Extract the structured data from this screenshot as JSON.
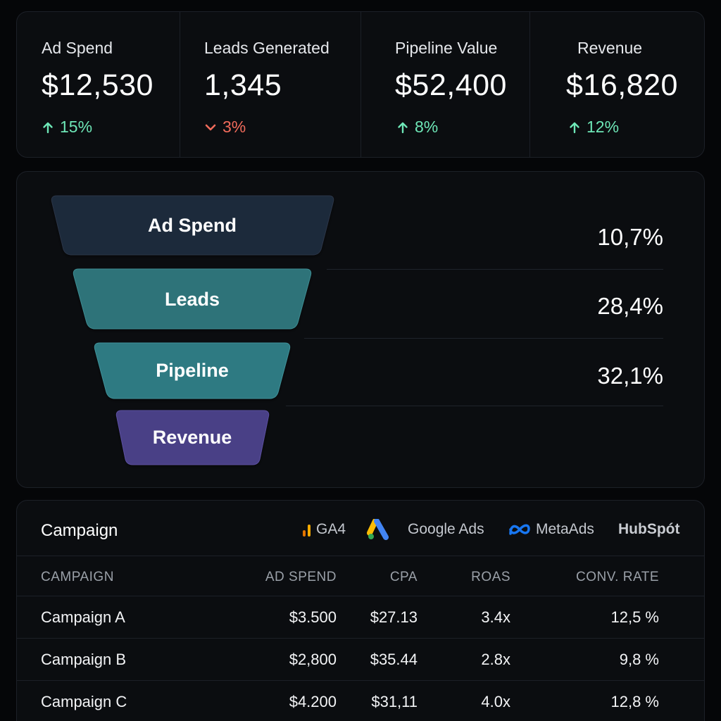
{
  "kpis": [
    {
      "label": "Ad Spend",
      "value": "$12,530",
      "delta": "15%",
      "direction": "up"
    },
    {
      "label": "Leads Generated",
      "value": "1,345",
      "delta": "3%",
      "direction": "down"
    },
    {
      "label": "Pipeline Value",
      "value": "$52,400",
      "delta": "8%",
      "direction": "up"
    },
    {
      "label": "Revenue",
      "value": "$16,820",
      "delta": "12%",
      "direction": "up"
    }
  ],
  "funnel": {
    "stages": [
      {
        "label": "Ad Spend",
        "color": "#1e293b"
      },
      {
        "label": "Leads",
        "color": "#2f7379"
      },
      {
        "label": "Pipeline",
        "color": "#2f7a82"
      },
      {
        "label": "Revenue",
        "color": "#4a3f86"
      }
    ],
    "conversion_rates": [
      "10,7%",
      "28,4%",
      "32,1%"
    ]
  },
  "campaigns": {
    "title": "Campaign",
    "integrations": {
      "ga4": "GA4",
      "google_ads": "Google Ads",
      "meta_ads": "MetaAds",
      "hubspot": "HubSpót"
    },
    "columns": {
      "name": "CAMPAIGN",
      "spend": "AD SPEND",
      "cpa": "CPA",
      "roas": "ROAS",
      "conv": "CONV. RATE"
    },
    "rows": [
      {
        "name": "Campaign A",
        "spend": "$3.500",
        "cpa": "$27.13",
        "roas": "3.4x",
        "conv": "12,5 %"
      },
      {
        "name": "Campaign B",
        "spend": "$2,800",
        "cpa": "$35.44",
        "roas": "2.8x",
        "conv": "9,8 %"
      },
      {
        "name": "Campaign C",
        "spend": "$4.200",
        "cpa": "$31,11",
        "roas": "4.0x",
        "conv": "12,8 %"
      }
    ]
  },
  "colors": {
    "positive": "#6ee7b7",
    "negative": "#f26b5b",
    "background": "#050608",
    "card": "#0b0d10"
  }
}
